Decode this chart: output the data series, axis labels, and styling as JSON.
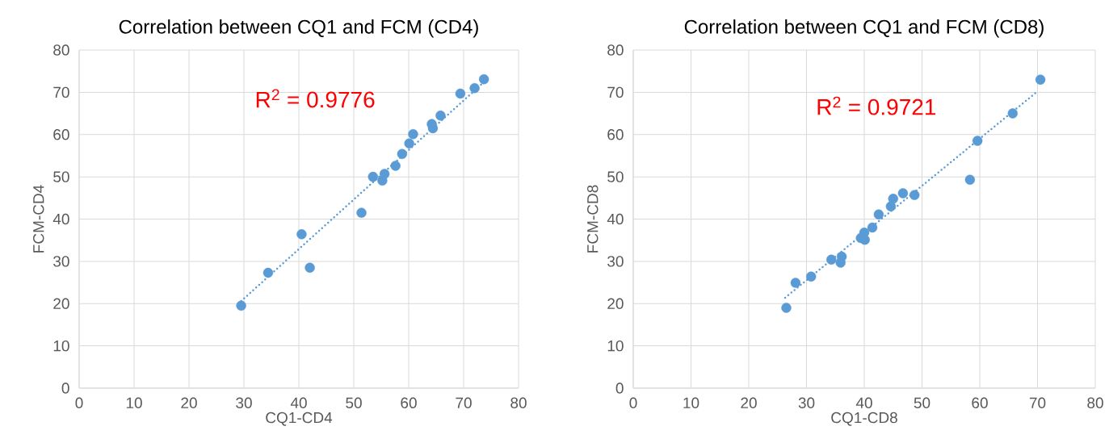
{
  "chart_data": [
    {
      "type": "scatter",
      "title": "Correlation between CQ1 and FCM (CD4)",
      "xlabel": "CQ1-CD4",
      "ylabel": "FCM-CD4",
      "annotations": [
        "R$^{2}$ = 0.9776"
      ],
      "xlim": [
        0,
        80
      ],
      "ylim": [
        0,
        80
      ],
      "xticks": [
        0,
        10,
        20,
        30,
        40,
        50,
        60,
        70,
        80
      ],
      "yticks": [
        0,
        10,
        20,
        30,
        40,
        50,
        60,
        70,
        80
      ],
      "grid": true,
      "series": [
        {
          "type": "scatter",
          "color": "#5b9bd5",
          "marker": "circle",
          "x": [
            29.5,
            34.4,
            40.5,
            42.0,
            51.4,
            53.5,
            55.2,
            55.6,
            57.6,
            58.8,
            60.1,
            60.8,
            64.2,
            64.4,
            65.8,
            69.4,
            72.0,
            73.7
          ],
          "values": [
            19.5,
            27.3,
            36.4,
            28.5,
            41.5,
            50.0,
            49.1,
            50.7,
            52.6,
            55.4,
            57.9,
            60.1,
            62.5,
            61.5,
            64.5,
            69.7,
            71.0,
            73.1
          ]
        },
        {
          "type": "line",
          "color": "#5b9bd5",
          "line_style": "dotted",
          "marker": "none",
          "x": [
            29.5,
            73.7
          ],
          "values": [
            20.6,
            72.4
          ]
        }
      ]
    },
    {
      "type": "scatter",
      "title": "Correlation between CQ1 and FCM (CD8)",
      "xlabel": "CQ1-CD8",
      "ylabel": "FCM-CD8",
      "annotations": [
        "R$^{2}$ = 0.9721"
      ],
      "xlim": [
        0,
        80
      ],
      "ylim": [
        0,
        80
      ],
      "xticks": [
        0,
        10,
        20,
        30,
        40,
        50,
        60,
        70,
        80
      ],
      "yticks": [
        0,
        10,
        20,
        30,
        40,
        50,
        60,
        70,
        80
      ],
      "grid": true,
      "series": [
        {
          "type": "scatter",
          "color": "#5b9bd5",
          "marker": "circle",
          "x": [
            26.5,
            28.1,
            30.8,
            34.3,
            36.1,
            35.9,
            39.4,
            40.0,
            40.1,
            41.4,
            42.5,
            44.6,
            45.0,
            46.7,
            48.7,
            58.3,
            59.6,
            65.7,
            70.5
          ],
          "values": [
            19.0,
            24.9,
            26.4,
            30.4,
            31.1,
            29.7,
            35.5,
            36.8,
            35.1,
            38.0,
            41.1,
            43.0,
            44.8,
            46.1,
            45.7,
            49.3,
            58.5,
            65.0,
            73.0
          ]
        },
        {
          "type": "line",
          "color": "#5b9bd5",
          "line_style": "dotted",
          "marker": "none",
          "x": [
            26.3,
            69.9
          ],
          "values": [
            21.4,
            70.1
          ]
        }
      ]
    }
  ]
}
